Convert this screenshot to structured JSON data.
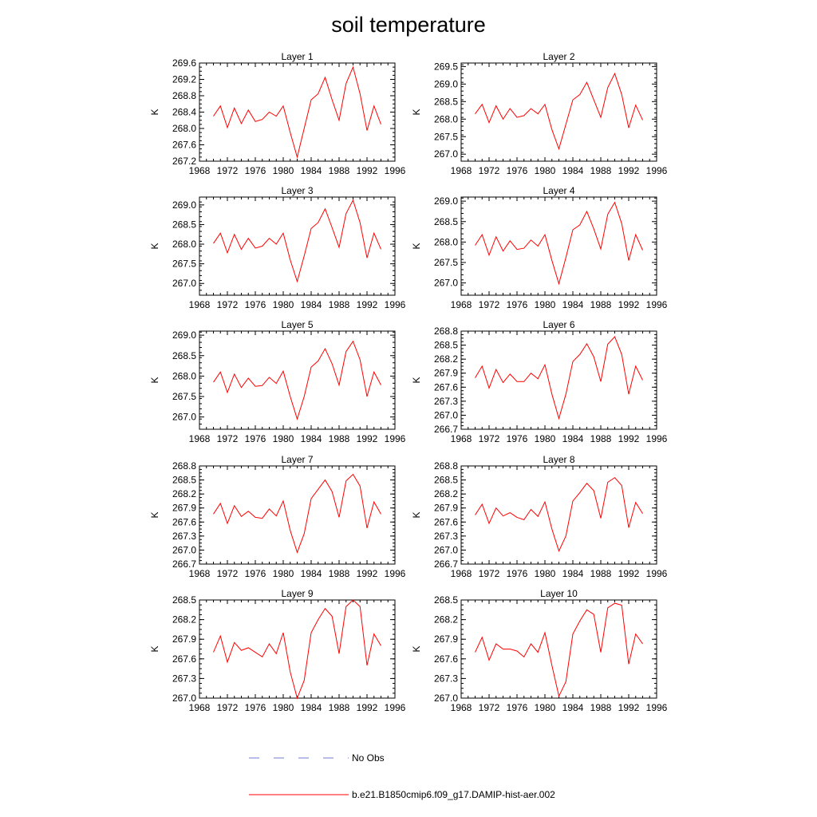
{
  "chart_data": {
    "type": "line",
    "title": "soil temperature",
    "legend": {
      "placement": "bottom",
      "entries": [
        {
          "label": "No Obs",
          "color": "#6f7fd0",
          "style": "dashed"
        },
        {
          "label": "b.e21.B1850cmip6.f09_g17.DAMIP-hist-aer.002",
          "color": "#ff0000",
          "style": "solid"
        }
      ]
    },
    "x": [
      1970,
      1971,
      1972,
      1973,
      1974,
      1975,
      1976,
      1977,
      1978,
      1979,
      1980,
      1981,
      1982,
      1983,
      1984,
      1985,
      1986,
      1987,
      1988,
      1989,
      1990,
      1991,
      1992,
      1993,
      1994
    ],
    "xlim": [
      1968,
      1996
    ],
    "xticks": [
      "1968",
      "1972",
      "1976",
      "1980",
      "1984",
      "1988",
      "1992",
      "1996"
    ],
    "panels": [
      {
        "title": "Layer 1",
        "ylabel": "K",
        "ylim": [
          267.2,
          269.6
        ],
        "yticks": [
          "267.2",
          "267.6",
          "268.0",
          "268.4",
          "268.8",
          "269.2",
          "269.6"
        ],
        "values": [
          268.3,
          268.55,
          268.02,
          268.5,
          268.12,
          268.45,
          268.17,
          268.22,
          268.4,
          268.3,
          268.55,
          267.9,
          267.3,
          268.0,
          268.7,
          268.85,
          269.25,
          268.7,
          268.2,
          269.1,
          269.5,
          268.85,
          267.95,
          268.55,
          268.1
        ]
      },
      {
        "title": "Layer 2",
        "ylabel": "K",
        "ylim": [
          266.8,
          269.6
        ],
        "yticks": [
          "267.0",
          "267.5",
          "268.0",
          "268.5",
          "269.0",
          "269.5"
        ],
        "values": [
          268.15,
          268.42,
          267.9,
          268.38,
          268.0,
          268.3,
          268.05,
          268.1,
          268.3,
          268.15,
          268.42,
          267.7,
          267.15,
          267.85,
          268.55,
          268.7,
          269.05,
          268.55,
          268.05,
          268.9,
          269.3,
          268.7,
          267.75,
          268.4,
          267.97
        ]
      },
      {
        "title": "Layer 3",
        "ylabel": "K",
        "ylim": [
          266.7,
          269.2
        ],
        "yticks": [
          "267.0",
          "267.5",
          "268.0",
          "268.5",
          "269.0"
        ],
        "values": [
          268.02,
          268.28,
          267.78,
          268.25,
          267.87,
          268.15,
          267.9,
          267.95,
          268.15,
          268.0,
          268.28,
          267.6,
          267.05,
          267.7,
          268.4,
          268.55,
          268.9,
          268.42,
          267.92,
          268.78,
          269.12,
          268.55,
          267.65,
          268.28,
          267.87
        ]
      },
      {
        "title": "Layer 4",
        "ylabel": "K",
        "ylim": [
          266.7,
          269.1
        ],
        "yticks": [
          "267.0",
          "267.5",
          "268.0",
          "268.5",
          "269.0"
        ],
        "values": [
          267.92,
          268.18,
          267.68,
          268.13,
          267.78,
          268.03,
          267.82,
          267.85,
          268.05,
          267.9,
          268.18,
          267.55,
          266.98,
          267.62,
          268.3,
          268.42,
          268.75,
          268.32,
          267.83,
          268.68,
          268.97,
          268.45,
          267.55,
          268.18,
          267.8
        ]
      },
      {
        "title": "Layer 5",
        "ylabel": "K",
        "ylim": [
          266.7,
          269.1
        ],
        "yticks": [
          "267.0",
          "267.5",
          "268.0",
          "268.5",
          "269.0"
        ],
        "values": [
          267.85,
          268.1,
          267.6,
          268.05,
          267.72,
          267.95,
          267.75,
          267.77,
          267.97,
          267.82,
          268.12,
          267.5,
          266.95,
          267.5,
          268.22,
          268.37,
          268.67,
          268.3,
          267.78,
          268.6,
          268.85,
          268.4,
          267.5,
          268.1,
          267.78
        ]
      },
      {
        "title": "Layer 6",
        "ylabel": "K",
        "ylim": [
          266.7,
          268.8
        ],
        "yticks": [
          "266.7",
          "267.0",
          "267.3",
          "267.6",
          "267.9",
          "268.2",
          "268.5",
          "268.8"
        ],
        "values": [
          267.8,
          268.05,
          267.58,
          267.98,
          267.7,
          267.88,
          267.72,
          267.72,
          267.9,
          267.78,
          268.08,
          267.45,
          266.93,
          267.45,
          268.15,
          268.3,
          268.53,
          268.25,
          267.72,
          268.52,
          268.68,
          268.3,
          267.45,
          268.05,
          267.75
        ]
      },
      {
        "title": "Layer 7",
        "ylabel": "K",
        "ylim": [
          266.7,
          268.8
        ],
        "yticks": [
          "266.7",
          "267.0",
          "267.3",
          "267.6",
          "267.9",
          "268.2",
          "268.5",
          "268.8"
        ],
        "values": [
          267.77,
          268.0,
          267.57,
          267.95,
          267.72,
          267.83,
          267.7,
          267.68,
          267.88,
          267.73,
          268.05,
          267.42,
          266.95,
          267.35,
          268.1,
          268.3,
          268.5,
          268.25,
          267.7,
          268.48,
          268.62,
          268.37,
          267.47,
          268.03,
          267.77
        ]
      },
      {
        "title": "Layer 8",
        "ylabel": "K",
        "ylim": [
          266.7,
          268.8
        ],
        "yticks": [
          "266.7",
          "267.0",
          "267.3",
          "267.6",
          "267.9",
          "268.2",
          "268.5",
          "268.8"
        ],
        "values": [
          267.75,
          267.98,
          267.57,
          267.9,
          267.73,
          267.8,
          267.7,
          267.65,
          267.87,
          267.72,
          268.03,
          267.45,
          266.98,
          267.3,
          268.05,
          268.23,
          268.43,
          268.27,
          267.68,
          268.45,
          268.55,
          268.38,
          267.48,
          268.02,
          267.78
        ]
      },
      {
        "title": "Layer 9",
        "ylabel": "K",
        "ylim": [
          267.0,
          268.5
        ],
        "yticks": [
          "267.0",
          "267.3",
          "267.6",
          "267.9",
          "268.2",
          "268.5"
        ],
        "values": [
          267.7,
          267.95,
          267.55,
          267.85,
          267.73,
          267.77,
          267.7,
          267.63,
          267.83,
          267.68,
          268.0,
          267.4,
          267.0,
          267.27,
          268.0,
          268.2,
          268.37,
          268.25,
          267.68,
          268.4,
          268.5,
          268.4,
          267.5,
          267.98,
          267.8
        ]
      },
      {
        "title": "Layer 10",
        "ylabel": "K",
        "ylim": [
          267.0,
          268.5
        ],
        "yticks": [
          "267.0",
          "267.3",
          "267.6",
          "267.9",
          "268.2",
          "268.5"
        ],
        "values": [
          267.7,
          267.93,
          267.58,
          267.83,
          267.75,
          267.75,
          267.72,
          267.63,
          267.83,
          267.7,
          268.0,
          267.5,
          267.03,
          267.25,
          267.98,
          268.18,
          268.35,
          268.28,
          267.7,
          268.38,
          268.45,
          268.42,
          267.52,
          267.98,
          267.83
        ]
      }
    ]
  }
}
